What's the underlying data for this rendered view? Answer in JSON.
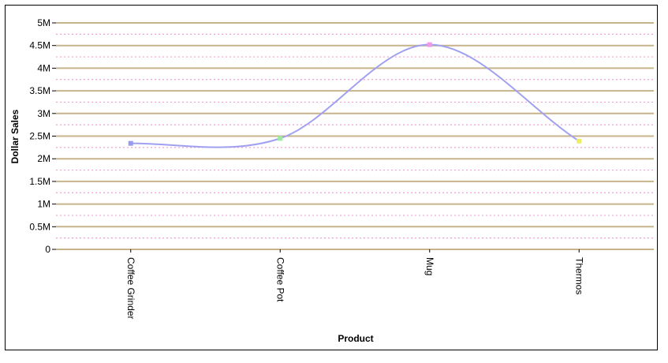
{
  "chart_data": {
    "type": "line",
    "smooth": true,
    "categories": [
      "Coffee Grinder",
      "Coffee Pot",
      "Mug",
      "Thermos"
    ],
    "series": [
      {
        "values": [
          2340000,
          2450000,
          4520000,
          2390000
        ]
      }
    ],
    "marker_colors": [
      "#9999ee",
      "#99ee99",
      "#ee99ee",
      "#eeee66"
    ],
    "line_color": "#a0a0f0",
    "xlabel": "Product",
    "ylabel": "Dollar Sales",
    "ylim": [
      0,
      5000000
    ],
    "y_ticks": [
      {
        "value": 0,
        "label": "0"
      },
      {
        "value": 500000,
        "label": "0.5M"
      },
      {
        "value": 1000000,
        "label": "1M"
      },
      {
        "value": 1500000,
        "label": "1.5M"
      },
      {
        "value": 2000000,
        "label": "2M"
      },
      {
        "value": 2500000,
        "label": "2.5M"
      },
      {
        "value": 3000000,
        "label": "3M"
      },
      {
        "value": 3500000,
        "label": "3.5M"
      },
      {
        "value": 4000000,
        "label": "4M"
      },
      {
        "value": 4500000,
        "label": "4.5M"
      },
      {
        "value": 5000000,
        "label": "5M"
      }
    ],
    "grid": {
      "major": true,
      "minor": true,
      "major_color": "#c8b48c",
      "minor_color": "#f0a0d0"
    },
    "legend": "none"
  }
}
